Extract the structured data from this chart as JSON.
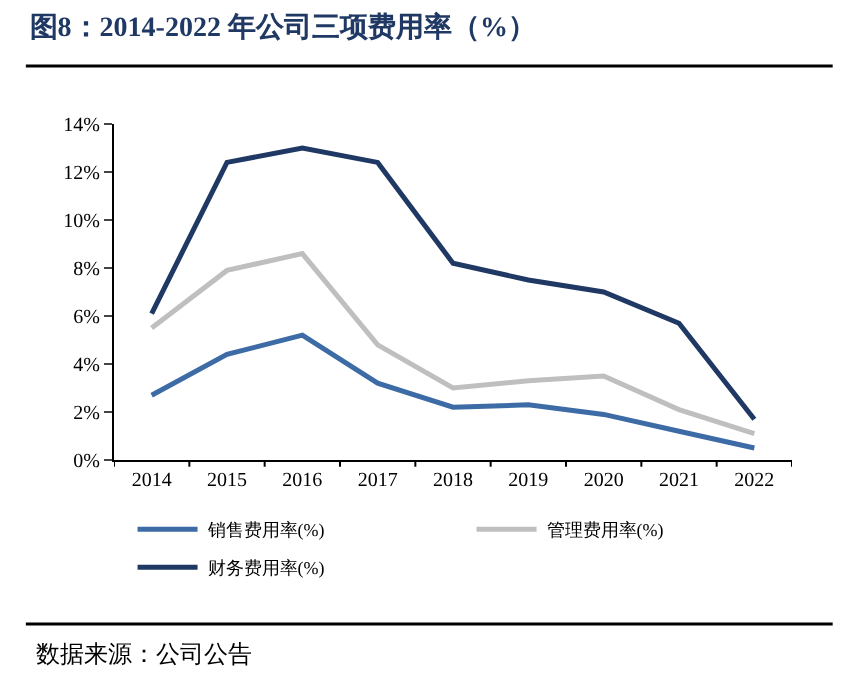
{
  "chart_data": {
    "type": "line",
    "title": "图8：2014-2022 年公司三项费用率（%）",
    "categories": [
      "2014",
      "2015",
      "2016",
      "2017",
      "2018",
      "2019",
      "2020",
      "2021",
      "2022"
    ],
    "series": [
      {
        "name": "销售费用率(%)",
        "color": "#3d6ba5",
        "values": [
          2.7,
          4.4,
          5.2,
          3.2,
          2.2,
          2.3,
          1.9,
          1.2,
          0.5
        ]
      },
      {
        "name": "管理费用率(%)",
        "color": "#bfbfbf",
        "values": [
          5.5,
          7.9,
          8.6,
          4.8,
          3.0,
          3.3,
          3.5,
          2.1,
          1.1
        ]
      },
      {
        "name": "财务费用率(%)",
        "color": "#1f3864",
        "values": [
          6.1,
          12.4,
          13.0,
          12.4,
          8.2,
          7.5,
          7.0,
          5.7,
          1.7
        ]
      }
    ],
    "ylim": [
      0,
      14
    ],
    "yticks": [
      {
        "value": 0,
        "label": "0%"
      },
      {
        "value": 2,
        "label": "2%"
      },
      {
        "value": 4,
        "label": "4%"
      },
      {
        "value": 6,
        "label": "6%"
      },
      {
        "value": 8,
        "label": "8%"
      },
      {
        "value": 10,
        "label": "10%"
      },
      {
        "value": 12,
        "label": "12%"
      },
      {
        "value": 14,
        "label": "14%"
      }
    ],
    "legend": "bottom",
    "marker": "none",
    "line_style": "solid",
    "annotations": [
      "数据来源：公司公告"
    ]
  }
}
